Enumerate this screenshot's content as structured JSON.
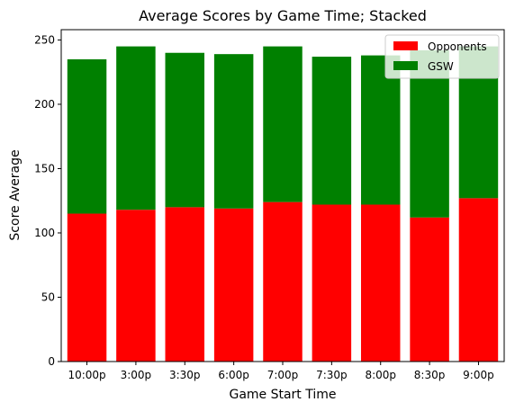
{
  "chart_data": {
    "type": "bar",
    "stacked": true,
    "title": "Average Scores by Game Time; Stacked",
    "xlabel": "Game Start Time",
    "ylabel": "Score Average",
    "categories": [
      "10:00p",
      "3:00p",
      "3:30p",
      "6:00p",
      "7:00p",
      "7:30p",
      "8:00p",
      "8:30p",
      "9:00p"
    ],
    "series": [
      {
        "name": "Opponents",
        "color": "#ff0000",
        "values": [
          115,
          118,
          120,
          119,
          124,
          122,
          122,
          112,
          127
        ]
      },
      {
        "name": "GSW",
        "color": "#008000",
        "values": [
          120,
          127,
          120,
          120,
          121,
          115,
          116,
          130,
          118
        ]
      }
    ],
    "ylim": [
      0,
      258
    ],
    "yticks": [
      0,
      50,
      100,
      150,
      200,
      250
    ],
    "grid": false,
    "legend_position": "top-right"
  }
}
